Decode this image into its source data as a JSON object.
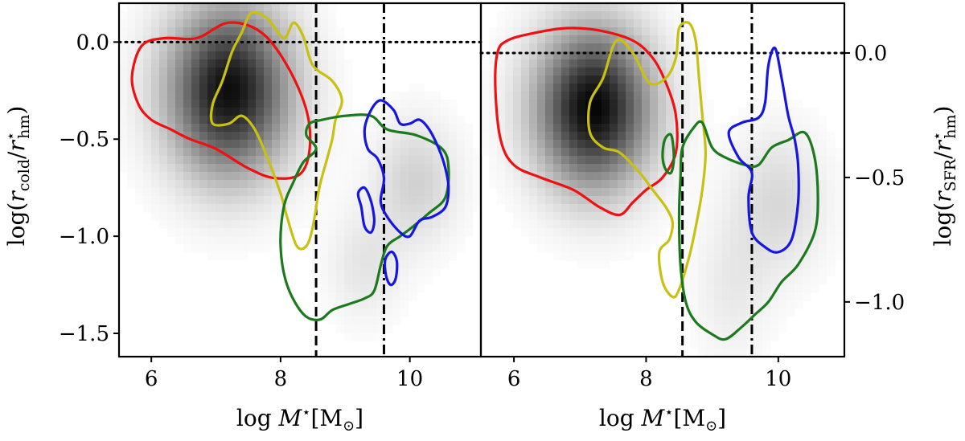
{
  "chart_data": [
    {
      "type": "scatter",
      "panel": "left",
      "description_kind": "density map with contour outlines",
      "xlabel_parts": [
        "log ",
        "M",
        "⋆",
        "[M",
        "⊙",
        "]"
      ],
      "ylabel_parts": [
        "log(",
        "r",
        "cold",
        "/",
        "r",
        "⋆",
        "hm",
        ")"
      ],
      "x_ticks": [
        6,
        8,
        10
      ],
      "x_tick_labels": [
        "6",
        "8",
        "10"
      ],
      "y_ticks": [
        0.0,
        -0.5,
        -1.0,
        -1.5
      ],
      "y_tick_labels": [
        "0.0",
        "−0.5",
        "−1.0",
        "−1.5"
      ],
      "xlim": [
        5.5,
        11.1
      ],
      "ylim": [
        -1.62,
        0.2
      ],
      "y_axis_side": "left",
      "hline_dotted": 0.0,
      "vline_dashed": 8.55,
      "vline_dashdot": 9.6,
      "density_peaks": [
        {
          "x": 7.2,
          "y": -0.25,
          "sx": 0.65,
          "sy": 0.3,
          "w": 0.95
        },
        {
          "x": 10.1,
          "y": -0.72,
          "sx": 0.45,
          "sy": 0.22,
          "w": 0.18
        },
        {
          "x": 9.3,
          "y": -1.15,
          "sx": 0.4,
          "sy": 0.2,
          "w": 0.1
        }
      ],
      "contours": [
        {
          "name": "red",
          "color": "#ee1111",
          "points": [
            [
              5.7,
              -0.18
            ],
            [
              5.85,
              -0.02
            ],
            [
              6.2,
              0.02
            ],
            [
              6.7,
              0.02
            ],
            [
              7.2,
              0.1
            ],
            [
              7.7,
              0.05
            ],
            [
              8.1,
              -0.12
            ],
            [
              8.4,
              -0.35
            ],
            [
              8.45,
              -0.55
            ],
            [
              8.3,
              -0.68
            ],
            [
              7.9,
              -0.7
            ],
            [
              7.5,
              -0.65
            ],
            [
              7.0,
              -0.55
            ],
            [
              6.6,
              -0.5
            ],
            [
              6.3,
              -0.45
            ],
            [
              6.0,
              -0.4
            ],
            [
              5.8,
              -0.32
            ]
          ]
        },
        {
          "name": "yellow",
          "color": "#c8c012",
          "points": [
            [
              6.95,
              -0.42
            ],
            [
              6.95,
              -0.32
            ],
            [
              7.1,
              -0.2
            ],
            [
              7.25,
              -0.05
            ],
            [
              7.4,
              0.05
            ],
            [
              7.55,
              0.15
            ],
            [
              7.8,
              0.12
            ],
            [
              8.05,
              0.02
            ],
            [
              8.2,
              0.1
            ],
            [
              8.35,
              0.03
            ],
            [
              8.5,
              -0.12
            ],
            [
              8.8,
              -0.2
            ],
            [
              8.95,
              -0.3
            ],
            [
              8.85,
              -0.4
            ],
            [
              8.8,
              -0.5
            ],
            [
              8.72,
              -0.6
            ],
            [
              8.6,
              -0.75
            ],
            [
              8.5,
              -0.95
            ],
            [
              8.4,
              -1.05
            ],
            [
              8.25,
              -1.05
            ],
            [
              8.1,
              -0.9
            ],
            [
              8.0,
              -0.78
            ],
            [
              7.8,
              -0.6
            ],
            [
              7.6,
              -0.45
            ],
            [
              7.4,
              -0.38
            ],
            [
              7.2,
              -0.42
            ]
          ]
        },
        {
          "name": "green",
          "color": "#1b7a1b",
          "points": [
            [
              8.45,
              -0.42
            ],
            [
              8.65,
              -0.4
            ],
            [
              9.0,
              -0.38
            ],
            [
              9.4,
              -0.38
            ],
            [
              9.65,
              -0.45
            ],
            [
              10.1,
              -0.48
            ],
            [
              10.5,
              -0.55
            ],
            [
              10.6,
              -0.65
            ],
            [
              10.55,
              -0.8
            ],
            [
              10.3,
              -0.88
            ],
            [
              10.05,
              -0.95
            ],
            [
              9.85,
              -1.0
            ],
            [
              9.65,
              -1.05
            ],
            [
              9.55,
              -1.15
            ],
            [
              9.45,
              -1.28
            ],
            [
              9.3,
              -1.32
            ],
            [
              9.05,
              -1.35
            ],
            [
              8.8,
              -1.38
            ],
            [
              8.6,
              -1.43
            ],
            [
              8.35,
              -1.4
            ],
            [
              8.1,
              -1.25
            ],
            [
              8.0,
              -1.05
            ],
            [
              8.05,
              -0.85
            ],
            [
              8.2,
              -0.72
            ],
            [
              8.35,
              -0.62
            ],
            [
              8.55,
              -0.55
            ],
            [
              8.4,
              -0.48
            ]
          ]
        },
        {
          "name": "blue-main",
          "color": "#1616e0",
          "points": [
            [
              9.3,
              -0.45
            ],
            [
              9.4,
              -0.35
            ],
            [
              9.55,
              -0.3
            ],
            [
              9.75,
              -0.35
            ],
            [
              9.85,
              -0.42
            ],
            [
              10.0,
              -0.42
            ],
            [
              10.15,
              -0.4
            ],
            [
              10.3,
              -0.45
            ],
            [
              10.45,
              -0.55
            ],
            [
              10.55,
              -0.65
            ],
            [
              10.6,
              -0.75
            ],
            [
              10.55,
              -0.85
            ],
            [
              10.35,
              -0.9
            ],
            [
              10.15,
              -0.92
            ],
            [
              10.0,
              -1.0
            ],
            [
              9.85,
              -0.98
            ],
            [
              9.65,
              -0.9
            ],
            [
              9.55,
              -0.82
            ],
            [
              9.6,
              -0.7
            ],
            [
              9.5,
              -0.6
            ],
            [
              9.35,
              -0.55
            ]
          ]
        },
        {
          "name": "blue-small-a",
          "color": "#1616e0",
          "points": [
            [
              9.2,
              -0.78
            ],
            [
              9.3,
              -0.75
            ],
            [
              9.4,
              -0.82
            ],
            [
              9.45,
              -0.92
            ],
            [
              9.4,
              -0.98
            ],
            [
              9.3,
              -0.95
            ],
            [
              9.25,
              -0.85
            ]
          ]
        },
        {
          "name": "blue-small-b",
          "color": "#1616e0",
          "points": [
            [
              9.62,
              -1.12
            ],
            [
              9.72,
              -1.08
            ],
            [
              9.8,
              -1.13
            ],
            [
              9.78,
              -1.22
            ],
            [
              9.7,
              -1.25
            ],
            [
              9.63,
              -1.2
            ]
          ]
        }
      ]
    },
    {
      "type": "scatter",
      "panel": "right",
      "description_kind": "density map with contour outlines",
      "xlabel_parts": [
        "log ",
        "M",
        "⋆",
        "[M",
        "⊙",
        "]"
      ],
      "ylabel_parts": [
        "log(",
        "r",
        "SFR",
        "/",
        "r",
        "⋆",
        "hm",
        ")"
      ],
      "x_ticks": [
        6,
        8,
        10
      ],
      "x_tick_labels": [
        "6",
        "8",
        "10"
      ],
      "y_ticks": [
        0.0,
        -0.5,
        -1.0
      ],
      "y_tick_labels": [
        "0.0",
        "−0.5",
        "−1.0"
      ],
      "xlim": [
        5.5,
        11.0
      ],
      "ylim": [
        -1.22,
        0.2
      ],
      "y_axis_side": "right",
      "hline_dotted": 0.0,
      "vline_dashed": 8.55,
      "vline_dashdot": 9.6,
      "density_peaks": [
        {
          "x": 7.2,
          "y": -0.22,
          "sx": 0.6,
          "sy": 0.22,
          "w": 0.98
        },
        {
          "x": 10.0,
          "y": -0.6,
          "sx": 0.5,
          "sy": 0.2,
          "w": 0.15
        },
        {
          "x": 9.3,
          "y": -0.95,
          "sx": 0.4,
          "sy": 0.2,
          "w": 0.08
        }
      ],
      "contours": [
        {
          "name": "red",
          "color": "#ee1111",
          "points": [
            [
              5.75,
              0.0
            ],
            [
              5.9,
              0.05
            ],
            [
              6.3,
              0.08
            ],
            [
              6.8,
              0.1
            ],
            [
              7.3,
              0.09
            ],
            [
              7.8,
              0.05
            ],
            [
              8.1,
              -0.02
            ],
            [
              8.3,
              -0.12
            ],
            [
              8.45,
              -0.25
            ],
            [
              8.45,
              -0.4
            ],
            [
              8.25,
              -0.5
            ],
            [
              8.0,
              -0.55
            ],
            [
              7.8,
              -0.6
            ],
            [
              7.6,
              -0.65
            ],
            [
              7.3,
              -0.62
            ],
            [
              6.9,
              -0.55
            ],
            [
              6.4,
              -0.5
            ],
            [
              6.0,
              -0.45
            ],
            [
              5.8,
              -0.35
            ],
            [
              5.72,
              -0.15
            ]
          ]
        },
        {
          "name": "yellow",
          "color": "#c8c012",
          "points": [
            [
              7.15,
              -0.32
            ],
            [
              7.15,
              -0.2
            ],
            [
              7.35,
              -0.1
            ],
            [
              7.55,
              0.05
            ],
            [
              7.8,
              0.0
            ],
            [
              8.05,
              -0.12
            ],
            [
              8.3,
              -0.1
            ],
            [
              8.45,
              -0.02
            ],
            [
              8.5,
              0.1
            ],
            [
              8.65,
              0.12
            ],
            [
              8.75,
              0.05
            ],
            [
              8.8,
              -0.1
            ],
            [
              8.85,
              -0.25
            ],
            [
              8.9,
              -0.4
            ],
            [
              8.85,
              -0.55
            ],
            [
              8.75,
              -0.7
            ],
            [
              8.65,
              -0.82
            ],
            [
              8.5,
              -0.95
            ],
            [
              8.4,
              -0.98
            ],
            [
              8.25,
              -0.92
            ],
            [
              8.2,
              -0.8
            ],
            [
              8.35,
              -0.75
            ],
            [
              8.4,
              -0.68
            ],
            [
              8.3,
              -0.62
            ],
            [
              8.1,
              -0.55
            ],
            [
              7.9,
              -0.48
            ],
            [
              7.6,
              -0.4
            ],
            [
              7.35,
              -0.38
            ]
          ]
        },
        {
          "name": "green",
          "color": "#1b7a1b",
          "points": [
            [
              8.55,
              -0.38
            ],
            [
              8.72,
              -0.3
            ],
            [
              8.85,
              -0.28
            ],
            [
              9.0,
              -0.38
            ],
            [
              9.2,
              -0.42
            ],
            [
              9.5,
              -0.45
            ],
            [
              9.7,
              -0.45
            ],
            [
              9.9,
              -0.38
            ],
            [
              10.15,
              -0.35
            ],
            [
              10.4,
              -0.32
            ],
            [
              10.55,
              -0.42
            ],
            [
              10.6,
              -0.58
            ],
            [
              10.55,
              -0.72
            ],
            [
              10.3,
              -0.85
            ],
            [
              10.05,
              -0.92
            ],
            [
              9.85,
              -1.0
            ],
            [
              9.65,
              -1.05
            ],
            [
              9.45,
              -1.1
            ],
            [
              9.2,
              -1.15
            ],
            [
              9.0,
              -1.13
            ],
            [
              8.75,
              -1.08
            ],
            [
              8.6,
              -1.0
            ],
            [
              8.52,
              -0.85
            ],
            [
              8.5,
              -0.65
            ],
            [
              8.52,
              -0.5
            ]
          ]
        },
        {
          "name": "green-small",
          "color": "#1b7a1b",
          "points": [
            [
              8.28,
              -0.35
            ],
            [
              8.38,
              -0.33
            ],
            [
              8.42,
              -0.42
            ],
            [
              8.38,
              -0.48
            ],
            [
              8.3,
              -0.47
            ],
            [
              8.25,
              -0.42
            ]
          ]
        },
        {
          "name": "blue",
          "color": "#1616e0",
          "points": [
            [
              9.25,
              -0.32
            ],
            [
              9.45,
              -0.28
            ],
            [
              9.7,
              -0.26
            ],
            [
              9.8,
              -0.2
            ],
            [
              9.85,
              -0.05
            ],
            [
              9.95,
              0.02
            ],
            [
              10.05,
              -0.1
            ],
            [
              10.15,
              -0.25
            ],
            [
              10.25,
              -0.35
            ],
            [
              10.3,
              -0.45
            ],
            [
              10.3,
              -0.6
            ],
            [
              10.2,
              -0.75
            ],
            [
              10.0,
              -0.8
            ],
            [
              9.8,
              -0.78
            ],
            [
              9.6,
              -0.72
            ],
            [
              9.55,
              -0.58
            ],
            [
              9.6,
              -0.48
            ],
            [
              9.4,
              -0.42
            ]
          ]
        }
      ]
    }
  ]
}
